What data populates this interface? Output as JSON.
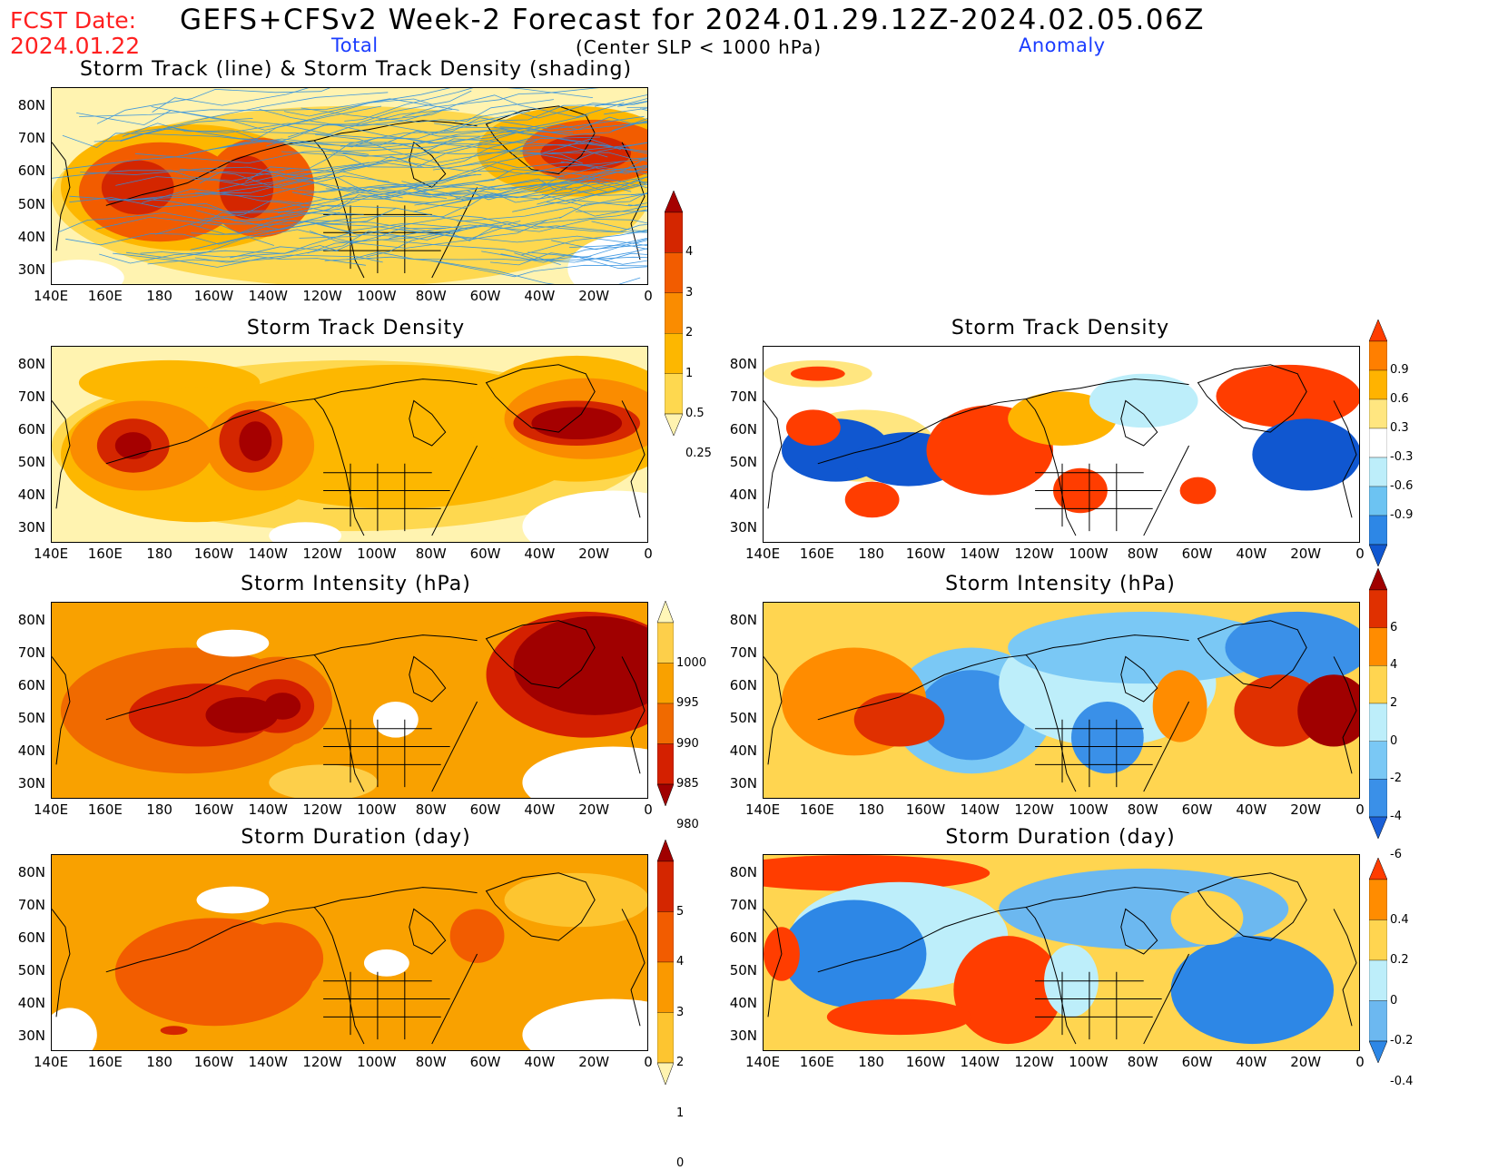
{
  "header": {
    "fcst_label": "FCST Date:",
    "fcst_date": "2024.01.22",
    "title": "GEFS+CFSv2 Week-2 Forecast for 2024.01.29.12Z-2024.02.05.06Z",
    "subtitle": "(Center SLP < 1000 hPa)",
    "total_label": "Total",
    "anomaly_label": "Anomaly"
  },
  "axes": {
    "lat_labels": [
      "80N",
      "70N",
      "60N",
      "50N",
      "40N",
      "30N"
    ],
    "lon_labels": [
      "140E",
      "160E",
      "180",
      "160W",
      "140W",
      "120W",
      "100W",
      "80W",
      "60W",
      "40W",
      "20W",
      "0"
    ]
  },
  "panels": {
    "track_total": {
      "title": "Storm Track (line) & Storm Track Density (shading)"
    },
    "density_total": {
      "title": "Storm Track Density"
    },
    "density_anom": {
      "title": "Storm Track Density"
    },
    "intensity_total": {
      "title": "Storm Intensity (hPa)"
    },
    "intensity_anom": {
      "title": "Storm Intensity (hPa)"
    },
    "duration_total": {
      "title": "Storm Duration (day)"
    },
    "duration_anom": {
      "title": "Storm Duration (day)"
    }
  },
  "colorbars": {
    "density_total": {
      "labels": [
        "4",
        "3",
        "2",
        "1",
        "0.5",
        "0.25"
      ],
      "colors": [
        "#a50000",
        "#d42600",
        "#f25c00",
        "#fa8c00",
        "#fdb700",
        "#fed84f",
        "#fff3b0"
      ]
    },
    "density_anom": {
      "labels": [
        "0.9",
        "0.6",
        "0.3",
        "-0.3",
        "-0.6",
        "-0.9"
      ],
      "colors": [
        "#ff3d00",
        "#ff7f00",
        "#ffb300",
        "#ffe680",
        "#ffffff",
        "#bdeefa",
        "#6cc3f2",
        "#2d87e6",
        "#1057d0"
      ]
    },
    "intensity_total": {
      "labels": [
        "1000",
        "995",
        "990",
        "985",
        "980"
      ],
      "colors": [
        "#fff6b8",
        "#fdcf4a",
        "#f9a100",
        "#f06a00",
        "#d42000",
        "#a00000"
      ]
    },
    "intensity_anom": {
      "labels": [
        "6",
        "4",
        "2",
        "0",
        "-2",
        "-4",
        "-6"
      ],
      "colors": [
        "#a00000",
        "#e03000",
        "#ff8c00",
        "#ffd550",
        "#bdeefa",
        "#7ac8f5",
        "#3a90e8",
        "#1a5fd6"
      ]
    },
    "duration_total": {
      "labels": [
        "5",
        "4",
        "3",
        "2",
        "1",
        "0"
      ],
      "colors": [
        "#a00000",
        "#d42600",
        "#f25c00",
        "#fa9900",
        "#fdc530",
        "#fff3b0"
      ]
    },
    "duration_anom": {
      "labels": [
        "0.4",
        "0.2",
        "0",
        "-0.2",
        "-0.4"
      ],
      "colors": [
        "#ff3d00",
        "#ff8c00",
        "#ffd550",
        "#bdeefa",
        "#6cb8f0",
        "#2d87e6"
      ]
    }
  }
}
